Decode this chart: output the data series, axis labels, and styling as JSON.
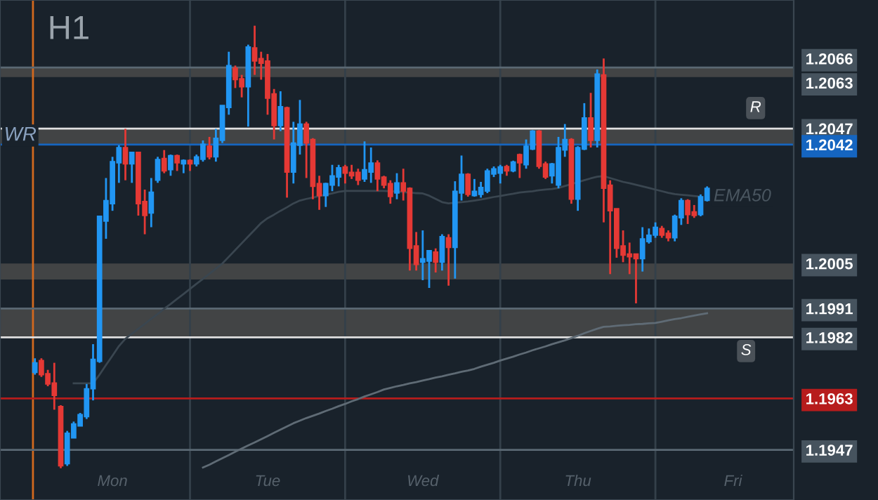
{
  "chart_data": {
    "type": "candlestick",
    "annotations": [
      "H1",
      "R",
      "S"
    ],
    "categories": [
      null,
      null,
      null,
      null,
      null,
      null,
      null,
      null,
      null,
      null,
      null,
      null,
      "Mon",
      null,
      null,
      null,
      null,
      null,
      null,
      null,
      null,
      null,
      null,
      null,
      null,
      null,
      null,
      null,
      null,
      null,
      null,
      null,
      null,
      null,
      null,
      null,
      "Tue",
      null,
      null,
      null,
      null,
      null,
      null,
      null,
      null,
      null,
      null,
      null,
      null,
      null,
      null,
      null,
      null,
      null,
      null,
      null,
      null,
      null,
      null,
      null,
      "Wed",
      null,
      null,
      null,
      null,
      null,
      null,
      null,
      null,
      null,
      null,
      null,
      null,
      null,
      null,
      null,
      null,
      null,
      null,
      null,
      null,
      null,
      null,
      null,
      "Thu",
      null,
      null,
      null,
      null,
      null,
      null,
      null,
      null,
      null,
      null,
      null,
      null,
      null,
      null,
      null,
      null,
      null,
      null,
      null,
      null,
      null,
      null,
      null,
      "Fri"
    ],
    "ohlc": [
      [
        1.19711,
        1.19755,
        1.19704,
        1.19741
      ],
      [
        1.19748,
        1.19755,
        1.19697,
        1.19704
      ],
      [
        1.19707,
        1.19719,
        1.19668,
        1.19675
      ],
      [
        1.19678,
        1.19741,
        1.19595,
        1.19639
      ],
      [
        1.19605,
        1.19609,
        1.19413,
        1.1942
      ],
      [
        1.19427,
        1.19529,
        1.1942,
        1.19522
      ],
      [
        1.19507,
        1.19558,
        1.19507,
        1.19551
      ],
      [
        1.19544,
        1.19585,
        1.19544,
        1.1958
      ],
      [
        1.19573,
        1.19675,
        1.19566,
        1.1966
      ],
      [
        1.1966,
        1.19799,
        1.19624,
        1.19752
      ],
      [
        1.19745,
        1.20199,
        1.19741,
        1.20197
      ],
      [
        1.20182,
        1.20316,
        1.20127,
        1.20246
      ],
      [
        1.20236,
        1.20382,
        1.20214,
        1.20367
      ],
      [
        1.20363,
        1.20418,
        1.20301,
        1.20411
      ],
      [
        1.20411,
        1.20469,
        1.20309,
        1.2036
      ],
      [
        1.2036,
        1.20396,
        1.20301,
        1.20396
      ],
      [
        1.20396,
        1.20396,
        1.20199,
        1.20236
      ],
      [
        1.20243,
        1.2028,
        1.20141,
        1.20199
      ],
      [
        1.20207,
        1.20316,
        1.20163,
        1.20272
      ],
      [
        1.20309,
        1.20382,
        1.20301,
        1.20374
      ],
      [
        1.20377,
        1.20403,
        1.20331,
        1.20338
      ],
      [
        1.20342,
        1.20389,
        1.20323,
        1.20386
      ],
      [
        1.20386,
        1.20389,
        1.20338,
        1.20363
      ],
      [
        1.2036,
        1.20374,
        1.20331,
        1.20371
      ],
      [
        1.20371,
        1.20374,
        1.20338,
        1.2036
      ],
      [
        1.2036,
        1.20389,
        1.20352,
        1.20382
      ],
      [
        1.20374,
        1.20433,
        1.20367,
        1.20421
      ],
      [
        1.20415,
        1.20444,
        1.20374,
        1.20382
      ],
      [
        1.20382,
        1.20469,
        1.20367,
        1.2044
      ],
      [
        1.20433,
        1.20542,
        1.20425,
        1.20542
      ],
      [
        1.20535,
        1.20709,
        1.20513,
        1.20666
      ],
      [
        1.20658,
        1.20666,
        1.20596,
        1.20622
      ],
      [
        1.20625,
        1.20637,
        1.20567,
        1.206
      ],
      [
        1.206,
        1.20731,
        1.20476,
        1.20724
      ],
      [
        1.20721,
        1.2079,
        1.20637,
        1.2068
      ],
      [
        1.20688,
        1.20709,
        1.20622,
        1.20673
      ],
      [
        1.2068,
        1.20702,
        1.20513,
        1.20564
      ],
      [
        1.20578,
        1.20593,
        1.20436,
        1.20479
      ],
      [
        1.20479,
        1.20586,
        1.20462,
        1.20538
      ],
      [
        1.20535,
        1.20538,
        1.20255,
        1.20334
      ],
      [
        1.20334,
        1.20491,
        1.20299,
        1.20425
      ],
      [
        1.20418,
        1.20559,
        1.20389,
        1.20484
      ],
      [
        1.20484,
        1.20491,
        1.20316,
        1.20425
      ],
      [
        1.20436,
        1.2044,
        1.2025,
        1.2029
      ],
      [
        1.20299,
        1.20323,
        1.20217,
        1.20261
      ],
      [
        1.20261,
        1.20301,
        1.20226,
        1.20299
      ],
      [
        1.20294,
        1.20357,
        1.20275,
        1.20323
      ],
      [
        1.20319,
        1.20357,
        1.2029,
        1.20348
      ],
      [
        1.20351,
        1.20357,
        1.20299,
        1.20331
      ],
      [
        1.20334,
        1.20357,
        1.20313,
        1.20323
      ],
      [
        1.20334,
        1.20345,
        1.20294,
        1.20309
      ],
      [
        1.20313,
        1.2043,
        1.20304,
        1.20342
      ],
      [
        1.20334,
        1.20411,
        1.20301,
        1.20363
      ],
      [
        1.20363,
        1.20371,
        1.20275,
        1.20313
      ],
      [
        1.20319,
        1.20323,
        1.20284,
        1.20294
      ],
      [
        1.20299,
        1.20309,
        1.20236,
        1.20258
      ],
      [
        1.20269,
        1.20331,
        1.2025,
        1.20301
      ],
      [
        1.20301,
        1.20345,
        1.20246,
        1.20275
      ],
      [
        1.20284,
        1.20287,
        1.20028,
        1.20097
      ],
      [
        1.20105,
        1.20148,
        1.20028,
        1.20047
      ],
      [
        1.20054,
        1.20153,
        1.19998,
        1.20065
      ],
      [
        1.20057,
        1.2009,
        1.19974,
        1.2009
      ],
      [
        1.20086,
        1.20097,
        1.20022,
        1.20054
      ],
      [
        1.20054,
        1.20141,
        1.20028,
        1.20134
      ],
      [
        1.2013,
        1.20141,
        1.19981,
        1.201
      ],
      [
        1.201,
        1.20306,
        1.20003,
        1.20275
      ],
      [
        1.20269,
        1.20386,
        1.20246,
        1.20328
      ],
      [
        1.20328,
        1.20331,
        1.20258,
        1.20265
      ],
      [
        1.20261,
        1.20313,
        1.20258,
        1.20275
      ],
      [
        1.20265,
        1.20304,
        1.20255,
        1.20287
      ],
      [
        1.20275,
        1.20345,
        1.20269,
        1.20338
      ],
      [
        1.20328,
        1.20352,
        1.20319,
        1.20345
      ],
      [
        1.20331,
        1.20357,
        1.20299,
        1.20351
      ],
      [
        1.20352,
        1.20357,
        1.20323,
        1.20338
      ],
      [
        1.20338,
        1.2037,
        1.20334,
        1.20366
      ],
      [
        1.20389,
        1.20392,
        1.20316,
        1.20363
      ],
      [
        1.20357,
        1.20436,
        1.20345,
        1.20415
      ],
      [
        1.20406,
        1.20465,
        1.20403,
        1.20462
      ],
      [
        1.20462,
        1.20465,
        1.20345,
        1.20352
      ],
      [
        1.2036,
        1.20367,
        1.20313,
        1.20319
      ],
      [
        1.20323,
        1.20363,
        1.20299,
        1.2036
      ],
      [
        1.20294,
        1.20444,
        1.20284,
        1.20411
      ],
      [
        1.20403,
        1.20484,
        1.20382,
        1.20436
      ],
      [
        1.20436,
        1.2044,
        1.20236,
        1.2025
      ],
      [
        1.2025,
        1.20415,
        1.20214,
        1.20411
      ],
      [
        1.20406,
        1.20549,
        1.20403,
        1.20503
      ],
      [
        1.20503,
        1.20581,
        1.20411,
        1.20433
      ],
      [
        1.20433,
        1.20654,
        1.20411,
        1.2064
      ],
      [
        1.20637,
        1.20688,
        1.20178,
        1.20284
      ],
      [
        1.20294,
        1.20309,
        1.20017,
        1.20214
      ],
      [
        1.20221,
        1.20221,
        1.20068,
        1.20097
      ],
      [
        1.20105,
        1.20153,
        1.20054,
        1.20076
      ],
      [
        1.2008,
        1.20115,
        1.20017,
        1.20071
      ],
      [
        1.2008,
        1.2008,
        1.19926,
        1.20065
      ],
      [
        1.20065,
        1.20163,
        1.20025,
        1.20127
      ],
      [
        1.20118,
        1.20159,
        1.20112,
        1.20138
      ],
      [
        1.20138,
        1.20178,
        1.2013,
        1.20163
      ],
      [
        1.20159,
        1.20167,
        1.2013,
        1.20138
      ],
      [
        1.20144,
        1.20153,
        1.20119,
        1.2013
      ],
      [
        1.2013,
        1.20202,
        1.20119,
        1.20197
      ],
      [
        1.20192,
        1.20253,
        1.2017,
        1.20246
      ],
      [
        1.20246,
        1.2025,
        1.20173,
        1.20202
      ],
      [
        1.20211,
        1.20232,
        1.20192,
        1.20199
      ],
      [
        1.20202,
        1.20265,
        1.20197,
        1.20258
      ],
      [
        1.20246,
        1.2029,
        1.20243,
        1.20284
      ],
      null,
      null,
      null,
      null
    ],
    "colors": [
      "#2196f3",
      "#e53935",
      "#e53935",
      "#e53935",
      "#e53935",
      "#2196f3",
      "#2196f3",
      "#2196f3",
      "#2196f3",
      "#2196f3",
      "#2196f3",
      "#2196f3",
      "#2196f3",
      "#2196f3",
      "#e53935",
      "#2196f3",
      "#e53935",
      "#e53935",
      "#2196f3",
      "#2196f3",
      "#e53935",
      "#2196f3",
      "#e53935",
      "#2196f3",
      "#e53935",
      "#2196f3",
      "#2196f3",
      "#e53935",
      "#2196f3",
      "#2196f3",
      "#2196f3",
      "#e53935",
      "#e53935",
      "#2196f3",
      "#e53935",
      "#e53935",
      "#e53935",
      "#e53935",
      "#2196f3",
      "#e53935",
      "#2196f3",
      "#2196f3",
      "#e53935",
      "#e53935",
      "#e53935",
      "#2196f3",
      "#2196f3",
      "#2196f3",
      "#e53935",
      "#e53935",
      "#e53935",
      "#2196f3",
      "#2196f3",
      "#e53935",
      "#e53935",
      "#e53935",
      "#2196f3",
      "#e53935",
      "#e53935",
      "#e53935",
      "#2196f3",
      "#2196f3",
      "#e53935",
      "#2196f3",
      "#e53935",
      "#2196f3",
      "#2196f3",
      "#e53935",
      "#2196f3",
      "#2196f3",
      "#2196f3",
      "#2196f3",
      "#2196f3",
      "#e53935",
      "#2196f3",
      "#e53935",
      "#2196f3",
      "#2196f3",
      "#e53935",
      "#e53935",
      "#2196f3",
      "#2196f3",
      "#2196f3",
      "#e53935",
      "#2196f3",
      "#2196f3",
      "#e53935",
      "#2196f3",
      "#e53935",
      "#e53935",
      "#e53935",
      "#e53935",
      "#e53935",
      "#e53935",
      "#2196f3",
      "#2196f3",
      "#2196f3",
      "#e53935",
      "#e53935",
      "#2196f3",
      "#2196f3",
      "#e53935",
      "#e53935",
      "#2196f3",
      "#2196f3",
      null,
      null,
      null,
      null
    ],
    "series": [
      {
        "type": "line",
        "name": "EMA50",
        "color": "#3a4650",
        "values": [
          null,
          null,
          null,
          null,
          null,
          null,
          1.19677,
          1.19677,
          1.19677,
          1.19677,
          1.19704,
          1.19734,
          1.19763,
          1.19793,
          1.19816,
          1.19831,
          1.19847,
          1.19862,
          1.19878,
          1.19893,
          1.19909,
          1.19924,
          1.1994,
          1.19955,
          1.19971,
          1.19987,
          1.20002,
          1.20018,
          1.20034,
          1.2005,
          1.20071,
          1.20092,
          1.20113,
          1.20134,
          1.20155,
          1.20176,
          1.20191,
          1.20202,
          1.20214,
          1.20225,
          1.20237,
          1.20246,
          1.20251,
          1.20255,
          1.2026,
          1.20264,
          1.20268,
          1.20273,
          1.20276,
          1.20276,
          1.20276,
          1.20276,
          1.20276,
          1.20276,
          1.20276,
          1.20275,
          1.20274,
          1.20272,
          1.20271,
          1.20269,
          1.20268,
          1.20261,
          1.20251,
          1.20241,
          1.20237,
          1.20239,
          1.20241,
          1.20243,
          1.20246,
          1.20249,
          1.20253,
          1.20257,
          1.2026,
          1.20264,
          1.20267,
          1.20271,
          1.20273,
          1.20275,
          1.20278,
          1.2028,
          1.20282,
          1.20285,
          1.20291,
          1.20297,
          1.20303,
          1.20309,
          1.20315,
          1.2032,
          1.20322,
          1.20316,
          1.2031,
          1.20304,
          1.203,
          1.20295,
          1.2029,
          1.20285,
          1.2028,
          1.20275,
          1.2027,
          1.20266,
          1.20264,
          1.20262,
          1.2026,
          1.20258,
          null,
          null,
          null,
          null,
          null
        ]
      },
      {
        "type": "line",
        "color": "#5f6b75",
        "values": [
          null,
          null,
          null,
          null,
          null,
          null,
          null,
          null,
          null,
          null,
          null,
          null,
          null,
          null,
          null,
          null,
          null,
          null,
          null,
          null,
          null,
          null,
          null,
          null,
          null,
          null,
          1.19415,
          1.19424,
          1.19434,
          1.19444,
          1.19454,
          1.19464,
          1.19474,
          1.19484,
          1.19493,
          1.19503,
          1.19513,
          1.19523,
          1.19533,
          1.19543,
          1.19553,
          1.19561,
          1.19569,
          1.19576,
          1.19583,
          1.19591,
          1.19598,
          1.19606,
          1.19613,
          1.19621,
          1.19628,
          1.19636,
          1.19643,
          1.1965,
          1.19658,
          1.19663,
          1.19668,
          1.19672,
          1.19677,
          1.19681,
          1.19686,
          1.1969,
          1.19695,
          1.19699,
          1.19704,
          1.19708,
          1.19713,
          1.19717,
          1.19722,
          1.19729,
          1.19735,
          1.19741,
          1.19748,
          1.19754,
          1.1976,
          1.19767,
          1.19773,
          1.1978,
          1.19786,
          1.19792,
          1.19799,
          1.19805,
          1.19811,
          1.19818,
          1.19825,
          1.19833,
          1.1984,
          1.19847,
          1.19853,
          1.19854,
          1.19856,
          1.19858,
          1.19859,
          1.19861,
          1.19862,
          1.19864,
          1.19865,
          1.19869,
          1.19873,
          1.19877,
          1.1988,
          1.19884,
          1.19888,
          1.19892,
          1.19895,
          null,
          null,
          null,
          null
        ]
      }
    ],
    "ylim": [
      1.19314,
      1.2087
    ],
    "yticks": [
      1.2066,
      1.2063,
      1.2047,
      1.2042,
      1.2005,
      1.1991,
      1.1982,
      1.1963,
      1.1947
    ],
    "ref_lines": [
      {
        "axis": "y",
        "value": 1.2066,
        "color": "#5a6873"
      },
      {
        "axis": "y",
        "value": 1.2042,
        "color": "#1565c0",
        "label": "WR"
      },
      {
        "axis": "y",
        "value": 1.2047,
        "color": "#e0e0e0"
      },
      {
        "axis": "y",
        "value": 1.1991,
        "color": "#5a6873"
      },
      {
        "axis": "y",
        "value": 1.1982,
        "color": "#e0e0e0"
      },
      {
        "axis": "y",
        "value": 1.1963,
        "color": "#b71c1c"
      },
      {
        "axis": "y",
        "value": 1.1947,
        "color": "#5a6873"
      }
    ],
    "bands": [
      {
        "axis": "y",
        "from": 1.2063,
        "to": 1.2066,
        "color": "#4a4a4a"
      },
      {
        "axis": "y",
        "from": 1.2042,
        "to": 1.2047,
        "color": "#4a4a4a"
      },
      {
        "axis": "y",
        "from": 1.2,
        "to": 1.2005,
        "color": "#4a4a4a"
      },
      {
        "axis": "y",
        "from": 1.1982,
        "to": 1.1991,
        "color": "#4a4a4a"
      }
    ]
  }
}
